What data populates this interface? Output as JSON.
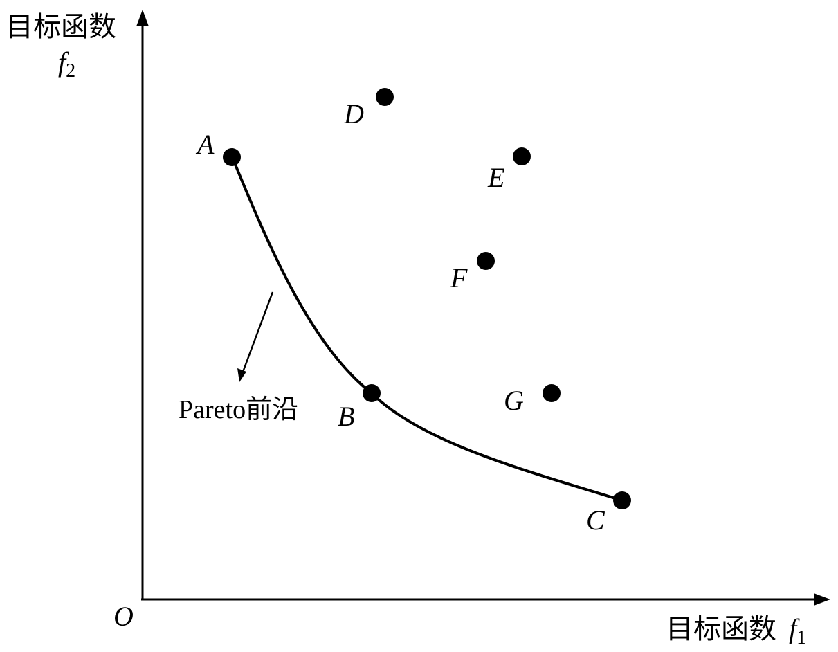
{
  "diagram": {
    "y_axis": {
      "title": "目标函数",
      "var": "f",
      "sub": "2"
    },
    "x_axis": {
      "title": "目标函数",
      "var": "f",
      "sub": "1"
    },
    "origin_label": "O",
    "annotation": "Pareto前沿",
    "points": [
      "A",
      "B",
      "C",
      "D",
      "E",
      "F",
      "G"
    ],
    "frontier_points": [
      "A",
      "B",
      "C"
    ],
    "colors": {
      "ink": "#000000",
      "background": "#ffffff"
    }
  }
}
